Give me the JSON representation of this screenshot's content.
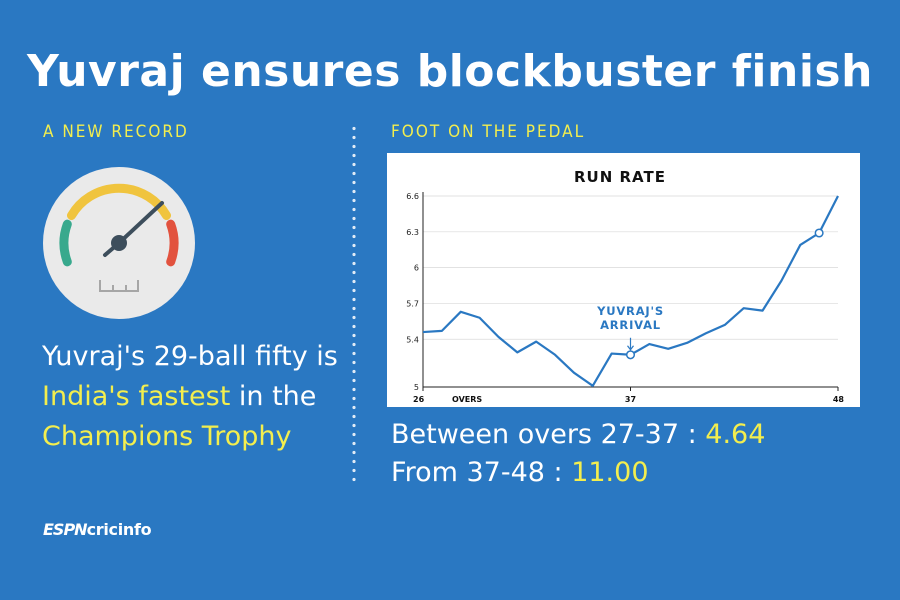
{
  "header": {
    "title": "Yuvraj ensures blockbuster finish"
  },
  "left": {
    "label": "A NEW RECORD",
    "icon": "speedometer-icon",
    "text_parts": [
      {
        "text": "Yuvraj's 29-ball fifty is ",
        "highlight": false
      },
      {
        "text": "India's fastest",
        "highlight": true
      },
      {
        "text": " in the ",
        "highlight": false
      },
      {
        "text": "Champions Trophy",
        "highlight": true
      }
    ]
  },
  "right": {
    "label": "FOOT ON THE PEDAL",
    "stats": [
      {
        "label": "Between overs 27-37 : ",
        "value": "4.64"
      },
      {
        "label": "From 37-48 : ",
        "value": "11.00"
      }
    ]
  },
  "logo": {
    "espn": "ESPN",
    "rest": "cricinfo"
  },
  "colors": {
    "background": "#2a78c2",
    "highlight": "#f3ee4e",
    "line": "#2a78c2",
    "panel": "#ffffff"
  },
  "chart_data": {
    "type": "line",
    "title": "RUN RATE",
    "xlabel": "OVERS",
    "xlim": [
      26,
      48
    ],
    "ylim": [
      5,
      6.6
    ],
    "x_ticks": [
      {
        "value": 26,
        "label": "26"
      },
      {
        "value": 37,
        "label": "37"
      },
      {
        "value": 48,
        "label": "48"
      }
    ],
    "y_ticks": [
      {
        "value": 5,
        "label": "5"
      },
      {
        "value": 5.4,
        "label": "5.4"
      },
      {
        "value": 5.7,
        "label": "5.7"
      },
      {
        "value": 6,
        "label": "6"
      },
      {
        "value": 6.3,
        "label": "6.3"
      },
      {
        "value": 6.6,
        "label": "6.6"
      }
    ],
    "series": [
      {
        "x": [
          26,
          27,
          28,
          29,
          30,
          31,
          32,
          33,
          34,
          35,
          36,
          37,
          38,
          39,
          40,
          41,
          42,
          43,
          44,
          45,
          46,
          47,
          48
        ],
        "y": [
          5.46,
          5.47,
          5.63,
          5.58,
          5.42,
          5.29,
          5.38,
          5.27,
          5.12,
          5.01,
          5.28,
          5.27,
          5.36,
          5.32,
          5.37,
          5.45,
          5.52,
          5.66,
          5.64,
          5.89,
          6.19,
          6.29,
          6.6
        ]
      }
    ],
    "markers": [
      {
        "x": 37,
        "y": 5.27
      },
      {
        "x": 47,
        "y": 6.29
      }
    ],
    "annotation": {
      "text_lines": [
        "YUVRAJ'S",
        "ARRIVAL"
      ],
      "x": 37,
      "y": 5.27
    }
  }
}
